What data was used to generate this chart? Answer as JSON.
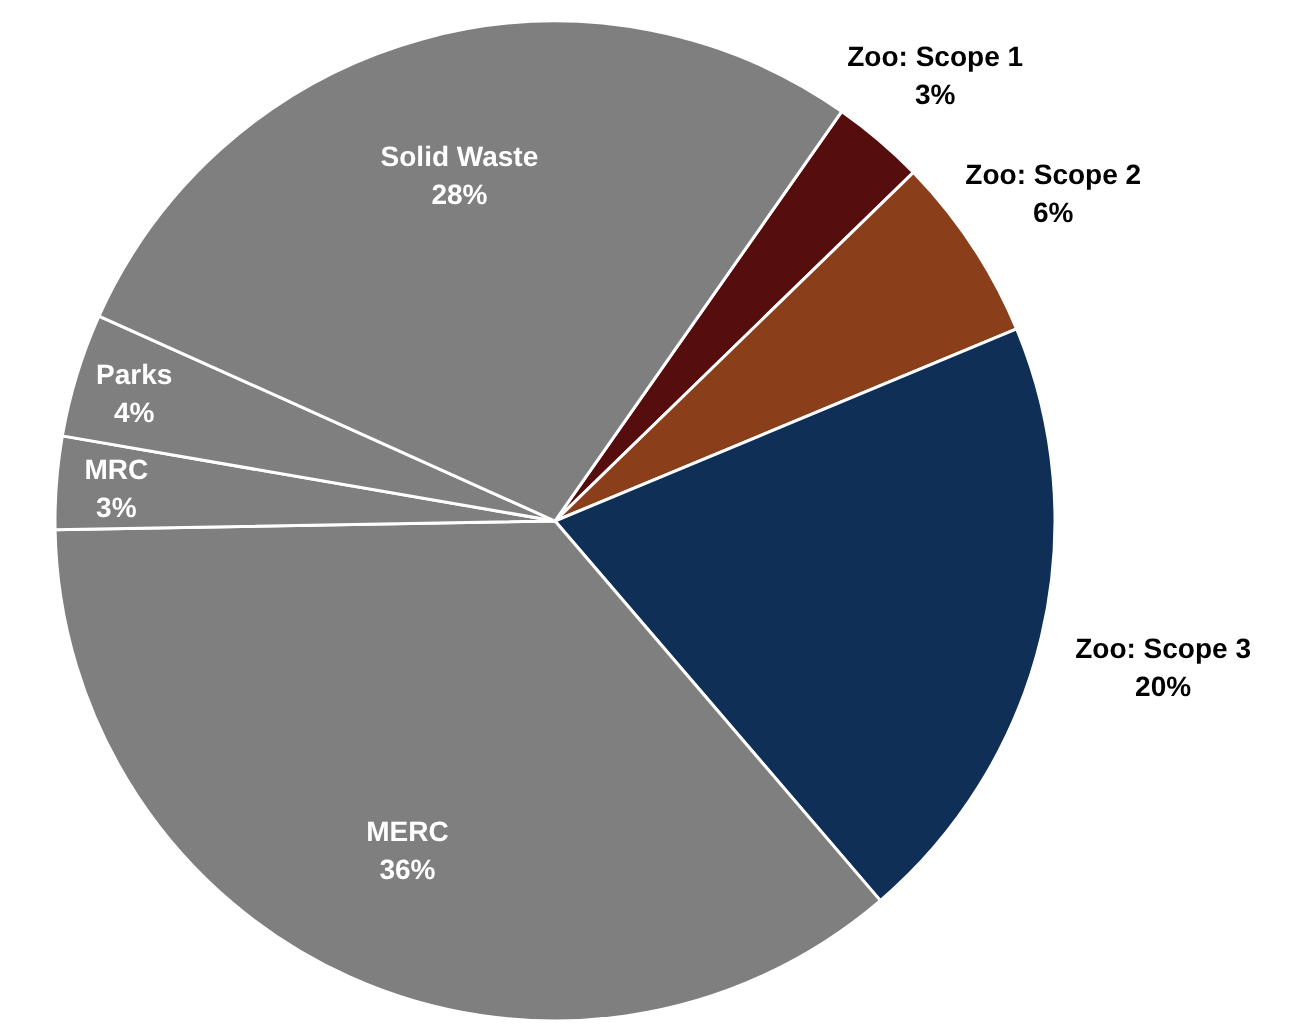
{
  "chart_data": {
    "type": "pie",
    "categories": [
      "Zoo: Scope 1",
      "Zoo: Scope 2",
      "Zoo: Scope 3",
      "MERC",
      "MRC",
      "Parks",
      "Solid Waste"
    ],
    "values": [
      3,
      6,
      20,
      36,
      3,
      4,
      28
    ],
    "colors": [
      "#560d0d",
      "#8b3e1a",
      "#0f2f56",
      "#7f7f7f",
      "#7f7f7f",
      "#7f7f7f",
      "#7f7f7f"
    ],
    "value_labels": [
      "3%",
      "6%",
      "20%",
      "36%",
      "3%",
      "4%",
      "28%"
    ]
  }
}
